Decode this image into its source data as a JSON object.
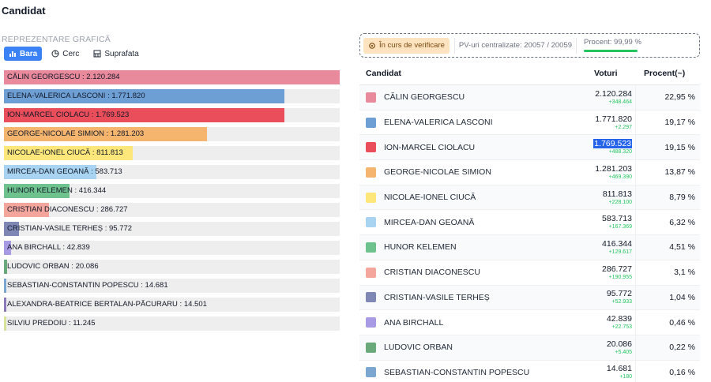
{
  "page": {
    "title": "Candidat"
  },
  "chart_section": {
    "label": "REPREZENTARE GRAFICĂ",
    "tabs": [
      {
        "label": "Bara",
        "icon": "bar-chart-icon",
        "active": true
      },
      {
        "label": "Cerc",
        "icon": "pie-chart-icon",
        "active": false
      },
      {
        "label": "Suprafata",
        "icon": "area-chart-icon",
        "active": false
      }
    ]
  },
  "chart_data": {
    "type": "bar",
    "orientation": "horizontal",
    "categories": [
      "CĂLIN GEORGESCU",
      "ELENA-VALERICA LASCONI",
      "ION-MARCEL CIOLACU",
      "GEORGE-NICOLAE SIMION",
      "NICOLAE-IONEL CIUCĂ",
      "MIRCEA-DAN GEOANĂ",
      "HUNOR KELEMEN",
      "CRISTIAN DIACONESCU",
      "CRISTIAN-VASILE TERHEȘ",
      "ANA BIRCHALL",
      "LUDOVIC ORBAN",
      "SEBASTIAN-CONSTANTIN POPESCU",
      "ALEXANDRA-BEATRICE BERTALAN-PĂCURARU",
      "SILVIU PREDOIU"
    ],
    "values": [
      2120284,
      1771820,
      1769523,
      1281203,
      811813,
      583713,
      416344,
      286727,
      95772,
      42839,
      20086,
      14681,
      14501,
      11245
    ],
    "labels": [
      "CĂLIN GEORGESCU : 2.120.284",
      "ELENA-VALERICA LASCONI : 1.771.820",
      "ION-MARCEL CIOLACU : 1.769.523",
      "GEORGE-NICOLAE SIMION : 1.281.203",
      "NICOLAE-IONEL CIUCĂ : 811.813",
      "MIRCEA-DAN GEOANĂ : 583.713",
      "HUNOR KELEMEN : 416.344",
      "CRISTIAN DIACONESCU : 286.727",
      "CRISTIAN-VASILE TERHEȘ : 95.772",
      "ANA BIRCHALL : 42.839",
      "LUDOVIC ORBAN : 20.086",
      "SEBASTIAN-CONSTANTIN POPESCU : 14.681",
      "ALEXANDRA-BEATRICE BERTALAN-PĂCURARU : 14.501",
      "SILVIU PREDOIU : 11.245"
    ],
    "colors": [
      "#e8899c",
      "#6e9fd4",
      "#ea4e5a",
      "#f5b56e",
      "#fde77a",
      "#a8d4f2",
      "#6ec28e",
      "#f4a59c",
      "#7f87b5",
      "#a89be3",
      "#6aa97a",
      "#7aa6cf",
      "#8c7ab8",
      "#d8e39a"
    ],
    "xlim": [
      0,
      2120284
    ],
    "grid": false,
    "legend": "none"
  },
  "status": {
    "verify_label": "În curs de verificare",
    "pv_text": "PV-uri centralizate: 20057 / 20059",
    "percent_text": "Procent: 99,99 %",
    "percent_value": 99.99
  },
  "table": {
    "headers": {
      "candidate": "Candidat",
      "votes": "Voturi",
      "percent": "Procent(~)"
    },
    "rows": [
      {
        "name": "CĂLIN GEORGESCU",
        "votes": "2.120.284",
        "delta": "+348.464",
        "percent": "22,95 %",
        "color": "#e8899c"
      },
      {
        "name": "ELENA-VALERICA LASCONI",
        "votes": "1.771.820",
        "delta": "+2.297",
        "percent": "19,17 %",
        "color": "#6e9fd4"
      },
      {
        "name": "ION-MARCEL CIOLACU",
        "votes": "1.769.523",
        "delta": "+488.320",
        "percent": "19,15 %",
        "color": "#ea4e5a",
        "selected": true
      },
      {
        "name": "GEORGE-NICOLAE SIMION",
        "votes": "1.281.203",
        "delta": "+469.390",
        "percent": "13,87 %",
        "color": "#f5b56e"
      },
      {
        "name": "NICOLAE-IONEL CIUCĂ",
        "votes": "811.813",
        "delta": "+228.100",
        "percent": "8,79 %",
        "color": "#fde77a"
      },
      {
        "name": "MIRCEA-DAN GEOANĂ",
        "votes": "583.713",
        "delta": "+167.369",
        "percent": "6,32 %",
        "color": "#a8d4f2"
      },
      {
        "name": "HUNOR KELEMEN",
        "votes": "416.344",
        "delta": "+129.617",
        "percent": "4,51 %",
        "color": "#6ec28e"
      },
      {
        "name": "CRISTIAN DIACONESCU",
        "votes": "286.727",
        "delta": "+190.955",
        "percent": "3,1 %",
        "color": "#f4a59c"
      },
      {
        "name": "CRISTIAN-VASILE TERHEȘ",
        "votes": "95.772",
        "delta": "+52.933",
        "percent": "1,04 %",
        "color": "#7f87b5"
      },
      {
        "name": "ANA BIRCHALL",
        "votes": "42.839",
        "delta": "+22.753",
        "percent": "0,46 %",
        "color": "#a89be3"
      },
      {
        "name": "LUDOVIC ORBAN",
        "votes": "20.086",
        "delta": "+5.405",
        "percent": "0,22 %",
        "color": "#6aa97a"
      },
      {
        "name": "SEBASTIAN-CONSTANTIN POPESCU",
        "votes": "14.681",
        "delta": "+180",
        "percent": "0,16 %",
        "color": "#7aa6cf"
      }
    ]
  }
}
